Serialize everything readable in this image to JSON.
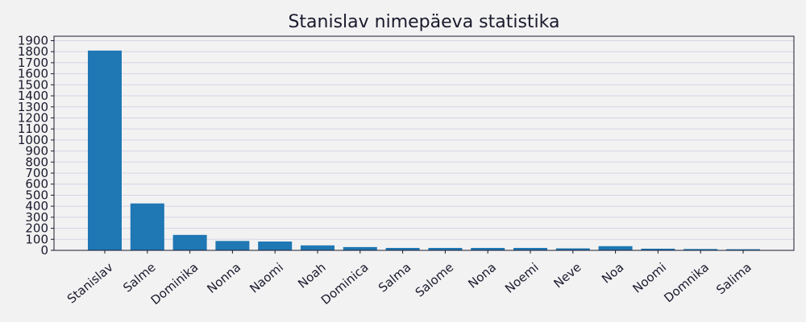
{
  "chart_data": {
    "type": "bar",
    "title": "Stanislav nimepäeva statistika",
    "xlabel": "",
    "ylabel": "",
    "categories": [
      "Stanislav",
      "Salme",
      "Dominika",
      "Nonna",
      "Naomi",
      "Noah",
      "Dominica",
      "Salma",
      "Salome",
      "Nona",
      "Noemi",
      "Neve",
      "Noa",
      "Noomi",
      "Domnika",
      "Salima"
    ],
    "values": [
      1810,
      425,
      140,
      85,
      80,
      45,
      30,
      22,
      22,
      22,
      22,
      18,
      38,
      15,
      12,
      10
    ],
    "ylim": [
      0,
      1940
    ],
    "yticks": [
      0,
      100,
      200,
      300,
      400,
      500,
      600,
      700,
      800,
      900,
      1000,
      1100,
      1200,
      1300,
      1400,
      1500,
      1600,
      1700,
      1800,
      1900
    ],
    "grid": true,
    "legend": "none",
    "colors": {
      "bar": "#1f77b4",
      "plot_background": "#f2f2f2",
      "grid": "#d4d4e8",
      "axis": "#1a1a2e",
      "text": "#1a1a2e"
    }
  }
}
